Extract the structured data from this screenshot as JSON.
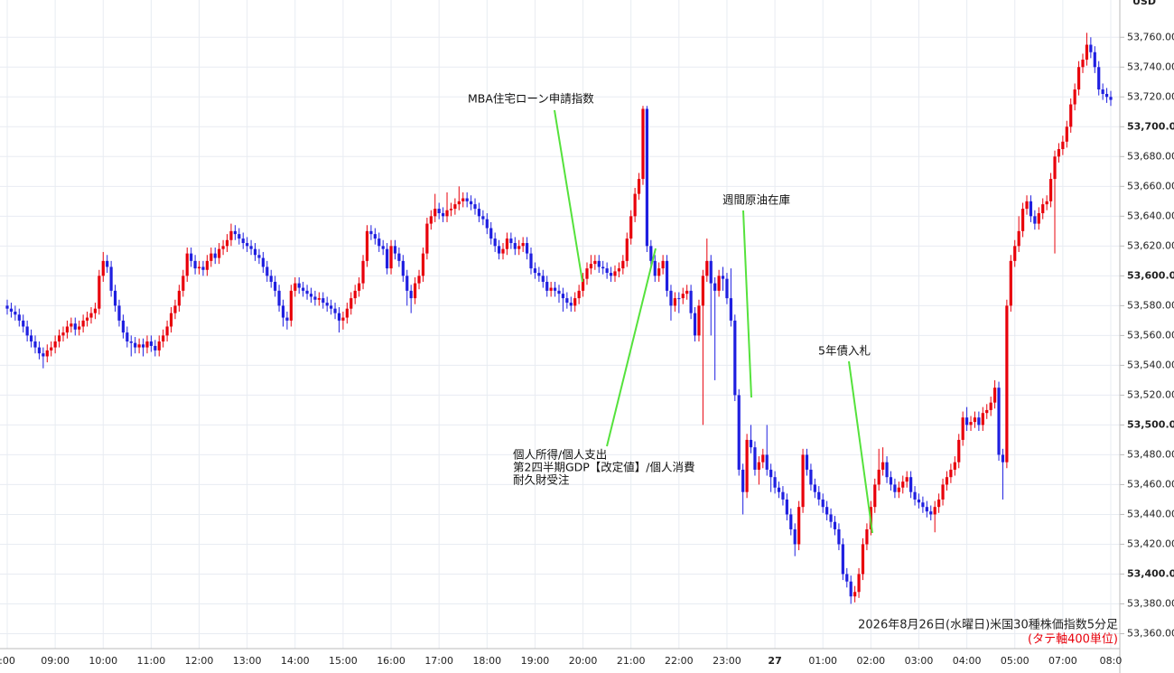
{
  "chart_data": {
    "type": "candlestick",
    "currency": "USD",
    "up_color": "#e8000b",
    "down_color": "#1f1fe0",
    "grid": true,
    "ylim": [
      53350,
      53785
    ],
    "yticks": [
      {
        "value": 53360,
        "label": "53,360.00"
      },
      {
        "value": 53380,
        "label": "53,380.00"
      },
      {
        "value": 53400,
        "label": "53,400.00"
      },
      {
        "value": 53420,
        "label": "53,420.00"
      },
      {
        "value": 53440,
        "label": "53,440.00"
      },
      {
        "value": 53460,
        "label": "53,460.00"
      },
      {
        "value": 53480,
        "label": "53,480.00"
      },
      {
        "value": 53500,
        "label": "53,500.00"
      },
      {
        "value": 53520,
        "label": "53,520.00"
      },
      {
        "value": 53540,
        "label": "53,540.00"
      },
      {
        "value": 53560,
        "label": "53,560.00"
      },
      {
        "value": 53580,
        "label": "53,580.00"
      },
      {
        "value": 53600,
        "label": "53,600.00"
      },
      {
        "value": 53620,
        "label": "53,620.00"
      },
      {
        "value": 53640,
        "label": "53,640.00"
      },
      {
        "value": 53660,
        "label": "53,660.00"
      },
      {
        "value": 53680,
        "label": "53,680.00"
      },
      {
        "value": 53700,
        "label": "53,700.00"
      },
      {
        "value": 53720,
        "label": "53,720.00"
      },
      {
        "value": 53740,
        "label": "53,740.00"
      },
      {
        "value": 53760,
        "label": "53,760.00"
      }
    ],
    "categories": [
      ":00",
      null,
      null,
      null,
      null,
      null,
      null,
      null,
      null,
      null,
      null,
      null,
      "09:00",
      null,
      null,
      null,
      null,
      null,
      null,
      null,
      null,
      null,
      null,
      null,
      "10:00",
      null,
      null,
      null,
      null,
      null,
      null,
      null,
      null,
      null,
      null,
      null,
      "11:00",
      null,
      null,
      null,
      null,
      null,
      null,
      null,
      null,
      null,
      null,
      null,
      "12:00",
      null,
      null,
      null,
      null,
      null,
      null,
      null,
      null,
      null,
      null,
      null,
      "13:00",
      null,
      null,
      null,
      null,
      null,
      null,
      null,
      null,
      null,
      null,
      null,
      "14:00",
      null,
      null,
      null,
      null,
      null,
      null,
      null,
      null,
      null,
      null,
      null,
      "15:00",
      null,
      null,
      null,
      null,
      null,
      null,
      null,
      null,
      null,
      null,
      null,
      "16:00",
      null,
      null,
      null,
      null,
      null,
      null,
      null,
      null,
      null,
      null,
      null,
      "17:00",
      null,
      null,
      null,
      null,
      null,
      null,
      null,
      null,
      null,
      null,
      null,
      "18:00",
      null,
      null,
      null,
      null,
      null,
      null,
      null,
      null,
      null,
      null,
      null,
      "19:00",
      null,
      null,
      null,
      null,
      null,
      null,
      null,
      null,
      null,
      null,
      null,
      "20:00",
      null,
      null,
      null,
      null,
      null,
      null,
      null,
      null,
      null,
      null,
      null,
      "21:00",
      null,
      null,
      null,
      null,
      null,
      null,
      null,
      null,
      null,
      null,
      null,
      "22:00",
      null,
      null,
      null,
      null,
      null,
      null,
      null,
      null,
      null,
      null,
      null,
      "23:00",
      null,
      null,
      null,
      null,
      null,
      null,
      null,
      null,
      null,
      null,
      null,
      "27",
      null,
      null,
      null,
      null,
      null,
      null,
      null,
      null,
      null,
      null,
      null,
      "01:00",
      null,
      null,
      null,
      null,
      null,
      null,
      null,
      null,
      null,
      null,
      null,
      "02:00",
      null,
      null,
      null,
      null,
      null,
      null,
      null,
      null,
      null,
      null,
      null,
      "03:00",
      null,
      null,
      null,
      null,
      null,
      null,
      null,
      null,
      null,
      null,
      null,
      "04:00",
      null,
      null,
      null,
      null,
      null,
      null,
      null,
      null,
      null,
      null,
      null,
      "05:00",
      null,
      null,
      null,
      null,
      null,
      null,
      null,
      null,
      null,
      null,
      null,
      "07:00",
      null,
      null,
      null,
      null,
      null,
      null,
      null,
      null,
      null,
      null,
      null,
      "08:0"
    ],
    "open": [
      53580,
      53578,
      53576,
      53574,
      53570,
      53566,
      53560,
      53556,
      53552,
      53548,
      53546,
      53550,
      53552,
      53556,
      53560,
      53562,
      53566,
      53568,
      53564,
      53566,
      53570,
      53572,
      53575,
      53578,
      53600,
      53610,
      53606,
      53590,
      53580,
      53570,
      53562,
      53556,
      53555,
      53552,
      53554,
      53552,
      53556,
      53553,
      53550,
      53556,
      53560,
      53566,
      53575,
      53580,
      53590,
      53600,
      53615,
      53610,
      53605,
      53606,
      53604,
      53610,
      53615,
      53612,
      53618,
      53620,
      53624,
      53630,
      53628,
      53625,
      53622,
      53620,
      53618,
      53614,
      53612,
      53606,
      53600,
      53596,
      53590,
      53580,
      53572,
      53570,
      53590,
      53595,
      53592,
      53590,
      53588,
      53586,
      53584,
      53585,
      53582,
      53580,
      53578,
      53575,
      53570,
      53572,
      53578,
      53585,
      53590,
      53595,
      53610,
      53630,
      53628,
      53625,
      53620,
      53618,
      53605,
      53620,
      53615,
      53610,
      53600,
      53590,
      53585,
      53595,
      53600,
      53615,
      53635,
      53640,
      53645,
      53642,
      53640,
      53644,
      53645,
      53648,
      53650,
      53652,
      53650,
      53648,
      53645,
      53640,
      53638,
      53632,
      53625,
      53620,
      53615,
      53618,
      53625,
      53622,
      53618,
      53620,
      53622,
      53615,
      53605,
      53602,
      53600,
      53596,
      53590,
      53592,
      53590,
      53588,
      53585,
      53582,
      53580,
      53585,
      53590,
      53598,
      53605,
      53608,
      53610,
      53606,
      53605,
      53602,
      53600,
      53603,
      53605,
      53610,
      53625,
      53640,
      53655,
      53665,
      53712,
      53620,
      53610,
      53600,
      53605,
      53610,
      53590,
      53580,
      53585,
      53585,
      53588,
      53590,
      53575,
      53560,
      53580,
      53600,
      53610,
      53595,
      53590,
      53600,
      53598,
      53585,
      53570,
      53520,
      53470,
      53455,
      53490,
      53485,
      53470,
      53475,
      53480,
      53470,
      53465,
      53458,
      53455,
      53450,
      53440,
      53430,
      53420,
      53445,
      53480,
      53470,
      53460,
      53455,
      53450,
      53445,
      53440,
      53435,
      53430,
      53420,
      53400,
      53395,
      53385,
      53388,
      53400,
      53420,
      53430,
      53445,
      53460,
      53470,
      53475,
      53465,
      53460,
      53455,
      53458,
      53462,
      53465,
      53455,
      53450,
      53448,
      53445,
      53442,
      53440,
      53445,
      53450,
      53460,
      53465,
      53470,
      53475,
      53490,
      53505,
      53500,
      53502,
      53505,
      53500,
      53508,
      53510,
      53515,
      53525,
      53480,
      53475,
      53580,
      53610,
      53620,
      53630,
      53645,
      53650,
      53640,
      53635,
      53642,
      53648,
      53650,
      53665,
      53680,
      53685,
      53690,
      53700,
      53715,
      53725,
      53740,
      53745,
      53755,
      53750,
      53740,
      53725,
      53722,
      53720
    ],
    "high": [
      53584,
      53582,
      53580,
      53578,
      53574,
      53570,
      53564,
      53560,
      53556,
      53552,
      53554,
      53556,
      53560,
      53564,
      53566,
      53570,
      53572,
      53572,
      53570,
      53574,
      53576,
      53579,
      53582,
      53604,
      53616,
      53614,
      53610,
      53594,
      53584,
      53574,
      53566,
      53560,
      53559,
      53558,
      53558,
      53560,
      53560,
      53557,
      53560,
      53564,
      53570,
      53579,
      53584,
      53594,
      53604,
      53619,
      53619,
      53614,
      53610,
      53610,
      53614,
      53619,
      53619,
      53622,
      53624,
      53628,
      53635,
      53634,
      53632,
      53629,
      53626,
      53624,
      53622,
      53618,
      53616,
      53610,
      53604,
      53600,
      53594,
      53584,
      53576,
      53594,
      53599,
      53599,
      53596,
      53594,
      53592,
      53590,
      53589,
      53589,
      53586,
      53584,
      53582,
      53579,
      53576,
      53582,
      53589,
      53594,
      53599,
      53614,
      53634,
      53634,
      53632,
      53629,
      53624,
      53622,
      53624,
      53624,
      53619,
      53614,
      53604,
      53594,
      53599,
      53604,
      53619,
      53639,
      53644,
      53655,
      53649,
      53646,
      53656,
      53649,
      53652,
      53660,
      53656,
      53656,
      53654,
      53652,
      53649,
      53644,
      53642,
      53636,
      53629,
      53624,
      53622,
      53629,
      53629,
      53626,
      53624,
      53626,
      53626,
      53619,
      53609,
      53606,
      53604,
      53600,
      53596,
      53596,
      53594,
      53592,
      53589,
      53586,
      53589,
      53594,
      53602,
      53609,
      53614,
      53614,
      53614,
      53610,
      53609,
      53606,
      53607,
      53609,
      53614,
      53629,
      53644,
      53659,
      53669,
      53714,
      53714,
      53624,
      53614,
      53609,
      53614,
      53614,
      53594,
      53589,
      53589,
      53592,
      53594,
      53594,
      53579,
      53584,
      53604,
      53625,
      53614,
      53599,
      53604,
      53606,
      53602,
      53605,
      53574,
      53524,
      53474,
      53494,
      53500,
      53489,
      53479,
      53484,
      53500,
      53474,
      53469,
      53462,
      53459,
      53454,
      53444,
      53434,
      53449,
      53484,
      53484,
      53474,
      53464,
      53459,
      53454,
      53449,
      53444,
      53439,
      53434,
      53424,
      53404,
      53399,
      53392,
      53404,
      53424,
      53434,
      53449,
      53464,
      53484,
      53485,
      53479,
      53469,
      53464,
      53462,
      53466,
      53469,
      53469,
      53459,
      53454,
      53452,
      53449,
      53446,
      53449,
      53454,
      53464,
      53469,
      53474,
      53479,
      53494,
      53509,
      53512,
      53506,
      53509,
      53509,
      53512,
      53514,
      53519,
      53530,
      53529,
      53484,
      53584,
      53614,
      53624,
      53640,
      53649,
      53654,
      53654,
      53644,
      53646,
      53652,
      53654,
      53669,
      53684,
      53689,
      53694,
      53704,
      53719,
      53729,
      53744,
      53749,
      53763,
      53760,
      53754,
      53744,
      53729,
      53726,
      53724
    ],
    "low": [
      53574,
      53572,
      53570,
      53566,
      53562,
      53556,
      53552,
      53548,
      53544,
      53538,
      53542,
      53546,
      53548,
      53552,
      53556,
      53558,
      53562,
      53560,
      53560,
      53562,
      53566,
      53568,
      53571,
      53574,
      53596,
      53602,
      53586,
      53576,
      53566,
      53558,
      53552,
      53546,
      53548,
      53548,
      53546,
      53548,
      53549,
      53546,
      53546,
      53552,
      53556,
      53562,
      53571,
      53576,
      53586,
      53596,
      53606,
      53601,
      53601,
      53600,
      53600,
      53606,
      53608,
      53608,
      53614,
      53616,
      53620,
      53624,
      53621,
      53618,
      53616,
      53614,
      53610,
      53608,
      53602,
      53596,
      53592,
      53586,
      53576,
      53566,
      53564,
      53566,
      53586,
      53588,
      53586,
      53584,
      53582,
      53580,
      53580,
      53578,
      53576,
      53574,
      53571,
      53562,
      53564,
      53568,
      53574,
      53581,
      53586,
      53591,
      53606,
      53624,
      53621,
      53616,
      53614,
      53601,
      53601,
      53611,
      53606,
      53596,
      53580,
      53575,
      53581,
      53591,
      53596,
      53611,
      53631,
      53636,
      53638,
      53636,
      53636,
      53640,
      53641,
      53644,
      53646,
      53646,
      53644,
      53641,
      53636,
      53634,
      53628,
      53621,
      53616,
      53611,
      53611,
      53614,
      53618,
      53614,
      53614,
      53616,
      53611,
      53601,
      53598,
      53596,
      53592,
      53586,
      53586,
      53586,
      53582,
      53576,
      53578,
      53576,
      53576,
      53581,
      53586,
      53594,
      53601,
      53604,
      53602,
      53601,
      53598,
      53596,
      53596,
      53599,
      53601,
      53606,
      53621,
      53636,
      53651,
      53661,
      53616,
      53606,
      53596,
      53596,
      53601,
      53586,
      53570,
      53576,
      53575,
      53581,
      53584,
      53571,
      53556,
      53556,
      53500,
      53596,
      53560,
      53530,
      53586,
      53590,
      53581,
      53566,
      53516,
      53466,
      53440,
      53451,
      53481,
      53466,
      53460,
      53471,
      53466,
      53455,
      53454,
      53451,
      53446,
      53436,
      53426,
      53412,
      53416,
      53441,
      53466,
      53456,
      53451,
      53446,
      53441,
      53436,
      53431,
      53426,
      53416,
      53396,
      53391,
      53380,
      53381,
      53384,
      53396,
      53416,
      53426,
      53441,
      53456,
      53466,
      53461,
      53456,
      53451,
      53451,
      53454,
      53458,
      53451,
      53446,
      53444,
      53441,
      53438,
      53436,
      53428,
      53441,
      53446,
      53456,
      53461,
      53466,
      53471,
      53486,
      53496,
      53496,
      53498,
      53496,
      53496,
      53504,
      53506,
      53511,
      53476,
      53450,
      53471,
      53576,
      53606,
      53616,
      53626,
      53641,
      53636,
      53631,
      53631,
      53638,
      53644,
      53646,
      53615,
      53676,
      53681,
      53686,
      53696,
      53711,
      53721,
      53736,
      53741,
      53746,
      53736,
      53721,
      53718,
      53716,
      53714
    ],
    "close": [
      53578,
      53576,
      53574,
      53570,
      53566,
      53560,
      53556,
      53552,
      53548,
      53546,
      53550,
      53552,
      53556,
      53560,
      53562,
      53566,
      53568,
      53564,
      53566,
      53570,
      53572,
      53575,
      53578,
      53600,
      53610,
      53606,
      53590,
      53580,
      53570,
      53562,
      53556,
      53555,
      53552,
      53554,
      53552,
      53556,
      53553,
      53550,
      53556,
      53560,
      53566,
      53575,
      53580,
      53590,
      53600,
      53615,
      53610,
      53605,
      53606,
      53604,
      53610,
      53615,
      53612,
      53618,
      53620,
      53624,
      53630,
      53628,
      53625,
      53622,
      53620,
      53618,
      53614,
      53612,
      53606,
      53600,
      53596,
      53590,
      53580,
      53572,
      53570,
      53590,
      53595,
      53592,
      53590,
      53588,
      53586,
      53584,
      53585,
      53582,
      53580,
      53578,
      53575,
      53570,
      53572,
      53578,
      53585,
      53590,
      53595,
      53610,
      53630,
      53628,
      53625,
      53620,
      53618,
      53605,
      53620,
      53615,
      53610,
      53600,
      53590,
      53585,
      53595,
      53600,
      53615,
      53635,
      53640,
      53645,
      53642,
      53640,
      53644,
      53645,
      53648,
      53650,
      53652,
      53650,
      53648,
      53645,
      53640,
      53638,
      53632,
      53625,
      53620,
      53615,
      53618,
      53625,
      53622,
      53618,
      53620,
      53622,
      53615,
      53605,
      53602,
      53600,
      53596,
      53590,
      53592,
      53590,
      53588,
      53585,
      53582,
      53580,
      53585,
      53590,
      53598,
      53605,
      53608,
      53610,
      53606,
      53605,
      53602,
      53600,
      53603,
      53605,
      53610,
      53625,
      53640,
      53655,
      53665,
      53712,
      53620,
      53610,
      53600,
      53605,
      53610,
      53590,
      53580,
      53585,
      53585,
      53588,
      53590,
      53575,
      53560,
      53580,
      53600,
      53610,
      53595,
      53590,
      53600,
      53598,
      53585,
      53570,
      53520,
      53470,
      53455,
      53490,
      53485,
      53470,
      53475,
      53480,
      53470,
      53465,
      53458,
      53455,
      53450,
      53440,
      53430,
      53420,
      53445,
      53480,
      53470,
      53460,
      53455,
      53450,
      53445,
      53440,
      53435,
      53430,
      53420,
      53400,
      53395,
      53385,
      53388,
      53400,
      53420,
      53430,
      53445,
      53460,
      53470,
      53475,
      53465,
      53460,
      53455,
      53458,
      53462,
      53465,
      53455,
      53450,
      53448,
      53445,
      53442,
      53440,
      53445,
      53450,
      53460,
      53465,
      53470,
      53475,
      53490,
      53505,
      53500,
      53502,
      53505,
      53500,
      53508,
      53510,
      53515,
      53525,
      53480,
      53475,
      53580,
      53610,
      53620,
      53630,
      53645,
      53650,
      53640,
      53635,
      53642,
      53648,
      53650,
      53665,
      53680,
      53685,
      53690,
      53700,
      53715,
      53725,
      53740,
      53745,
      53755,
      53750,
      53740,
      53725,
      53722,
      53720,
      53718
    ],
    "annotations": [
      {
        "text": "MBA住宅ローン申請指数"
      },
      {
        "text": "週間原油在庫"
      },
      {
        "text": "5年債入札"
      },
      {
        "lines": [
          "個人所得/個人支出",
          "第2四半期GDP【改定値】/個人消費",
          "耐久財受注"
        ]
      }
    ],
    "footnote": {
      "title": "2026年8月26日(水曜日)米国30種株価指数5分足",
      "note": "(タテ軸400単位)"
    }
  }
}
